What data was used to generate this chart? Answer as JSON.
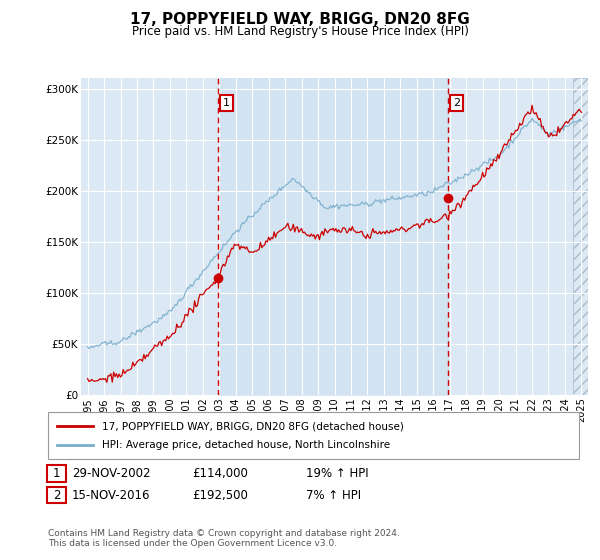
{
  "title": "17, POPPYFIELD WAY, BRIGG, DN20 8FG",
  "subtitle": "Price paid vs. HM Land Registry's House Price Index (HPI)",
  "legend_line1": "17, POPPYFIELD WAY, BRIGG, DN20 8FG (detached house)",
  "legend_line2": "HPI: Average price, detached house, North Lincolnshire",
  "transaction1_date": "29-NOV-2002",
  "transaction1_price": 114000,
  "transaction1_hpi": "19% ↑ HPI",
  "transaction2_date": "15-NOV-2016",
  "transaction2_price": 192500,
  "transaction2_hpi": "7% ↑ HPI",
  "footer1": "Contains HM Land Registry data © Crown copyright and database right 2024.",
  "footer2": "This data is licensed under the Open Government Licence v3.0.",
  "background_color": "#dce9f5",
  "fill_color": "#ccdff0",
  "red_color": "#cc0000",
  "blue_color": "#7aaecc",
  "dashed_color": "#cc0000",
  "ylim_min": 0,
  "ylim_max": 310000,
  "transaction1_year": 2002.92,
  "transaction2_year": 2016.88
}
